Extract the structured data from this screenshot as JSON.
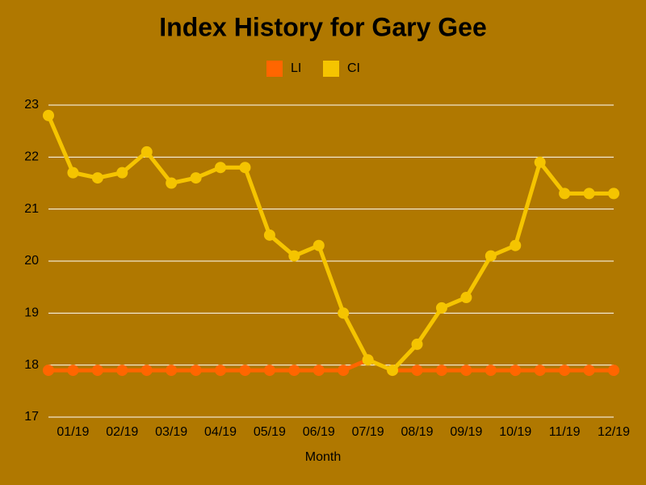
{
  "chart_data": {
    "type": "line",
    "title": "Index History for Gary Gee",
    "x_label": "Month",
    "categories": [
      null,
      "01/19",
      null,
      "02/19",
      null,
      "03/19",
      null,
      "04/19",
      null,
      "05/19",
      null,
      "06/19",
      null,
      "07/19",
      null,
      "08/19",
      null,
      "09/19",
      null,
      "10/19",
      null,
      "11/19",
      null,
      "12/19"
    ],
    "series": [
      {
        "name": "LI",
        "color": "#ff6600",
        "values": [
          17.9,
          17.9,
          17.9,
          17.9,
          17.9,
          17.9,
          17.9,
          17.9,
          17.9,
          17.9,
          17.9,
          17.9,
          17.9,
          18.1,
          17.9,
          17.9,
          17.9,
          17.9,
          17.9,
          17.9,
          17.9,
          17.9,
          17.9,
          17.9
        ]
      },
      {
        "name": "CI",
        "color": "#f5c400",
        "values": [
          22.8,
          21.7,
          21.6,
          21.7,
          22.1,
          21.5,
          21.6,
          21.8,
          21.8,
          20.5,
          20.1,
          20.3,
          19.0,
          18.1,
          17.9,
          18.4,
          19.1,
          19.3,
          20.1,
          20.3,
          21.9,
          21.3,
          21.3,
          21.3
        ]
      }
    ],
    "ylim": [
      17,
      23
    ],
    "yticks": [
      17,
      18,
      19,
      20,
      21,
      22,
      23
    ],
    "grid": true,
    "legend": "top"
  }
}
